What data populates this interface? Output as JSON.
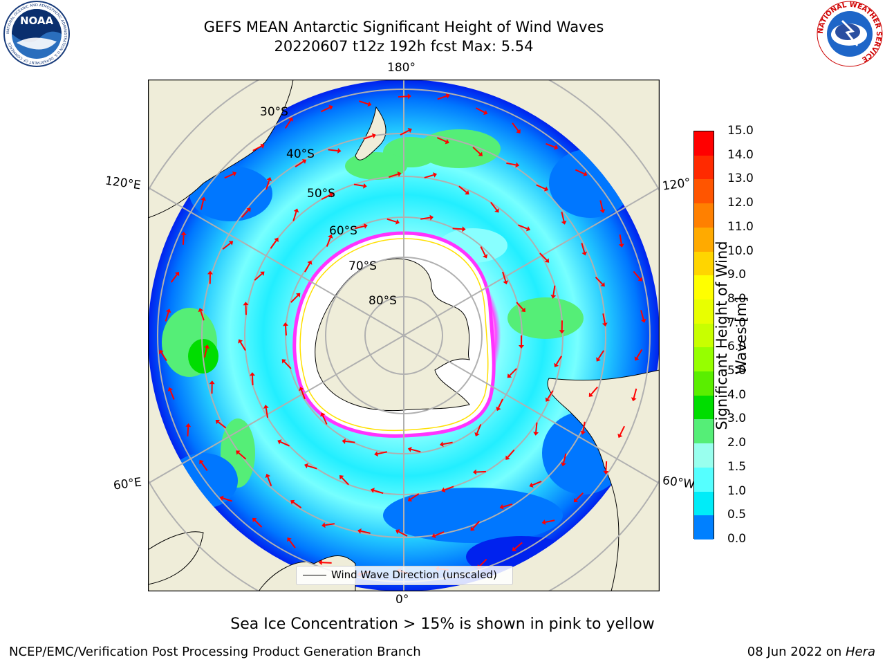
{
  "header": {
    "title": "GEFS MEAN Antarctic Significant Height of Wind Waves",
    "subtitle": "20220607 t12z 192h fcst   Max: 5.54"
  },
  "logos": {
    "noaa": {
      "text": "NOAA",
      "ring": "NATIONAL OCEANIC AND ATMOSPHERIC ADMINISTRATION  U.S. DEPARTMENT OF COMMERCE"
    },
    "nws": {
      "ring": "NATIONAL WEATHER SERVICE"
    }
  },
  "map": {
    "longitude_labels": [
      "180°",
      "120°E",
      "120°",
      "60°E",
      "60°W",
      "0°"
    ],
    "latitude_labels": [
      "30°S",
      "40°S",
      "50°S",
      "60°S",
      "70°S",
      "80°S"
    ],
    "legend_label": "Wind Wave Direction (unscaled)"
  },
  "colorbar": {
    "label_line1": "Significant Height of Wind",
    "label_line2": "Waves [m]",
    "ticks": [
      "15.0",
      "14.0",
      "13.0",
      "12.0",
      "11.0",
      "10.0",
      "9.0",
      "8.0",
      "7.0",
      "6.0",
      "5.0",
      "4.0",
      "3.0",
      "2.0",
      "1.5",
      "1.0",
      "0.5",
      "0.0"
    ],
    "colors": [
      "#ff0000",
      "#ff2a00",
      "#ff5500",
      "#ff8000",
      "#ffaa00",
      "#ffd500",
      "#ffff00",
      "#e8ff00",
      "#c8ff00",
      "#96ff00",
      "#5aee00",
      "#00dd00",
      "#55ee77",
      "#99ffee",
      "#55ffff",
      "#00ecf8",
      "#0080ff",
      "#0000ff"
    ]
  },
  "note": "Sea Ice Concentration > 15% is shown in pink to yellow",
  "footer": {
    "left": "NCEP/EMC/Verification Post Processing Product Generation Branch",
    "right_date": "08 Jun 2022 on ",
    "right_host": "Hera"
  }
}
